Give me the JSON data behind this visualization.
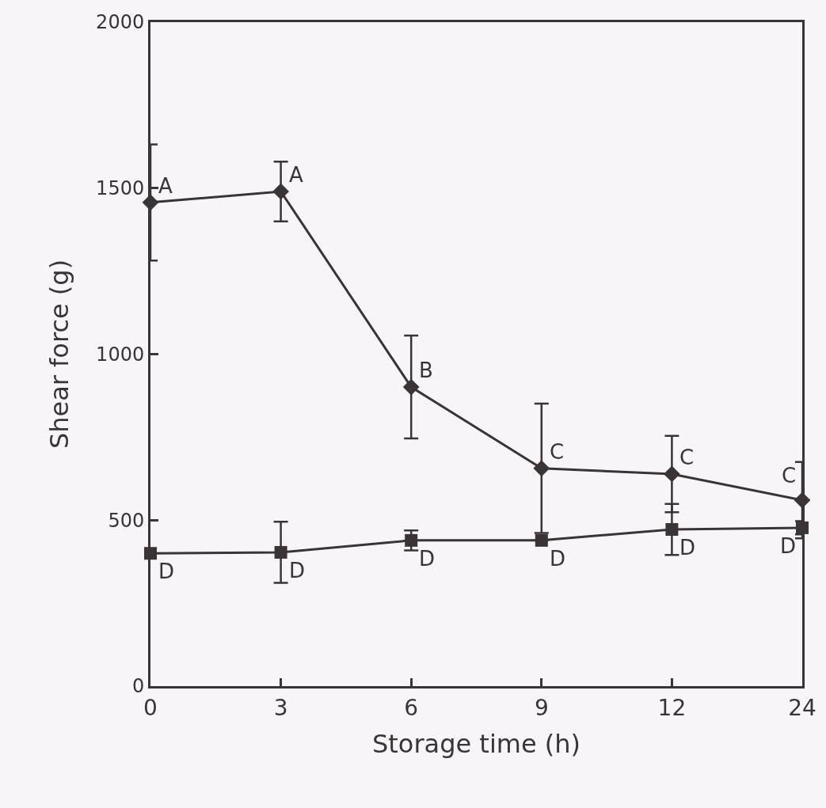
{
  "chart_data": {
    "type": "line",
    "xlabel": "Storage time (h)",
    "ylabel": "Shear force (g)",
    "categories": [
      "0",
      "3",
      "6",
      "9",
      "12",
      "24"
    ],
    "series": [
      {
        "color": "#3a3436",
        "marker": "diamond",
        "values": [
          1457,
          1490,
          901,
          656,
          639,
          560
        ],
        "errors": [
          175,
          90,
          155,
          195,
          115,
          115
        ]
      },
      {
        "color": "#3a3436",
        "marker": "square",
        "values": [
          400,
          403,
          439,
          439,
          472,
          477
        ],
        "errors": [
          null,
          92,
          30,
          null,
          77,
          20
        ]
      }
    ],
    "ylim": [
      0,
      2000
    ],
    "yticks": [
      0,
      500,
      1000,
      1500,
      2000
    ],
    "grid": false,
    "line_style": "solid",
    "annotations": [
      {
        "text": "A",
        "x": "0",
        "y": 1457
      },
      {
        "text": "A",
        "x": "3",
        "y": 1490
      },
      {
        "text": "B",
        "x": "6",
        "y": 901
      },
      {
        "text": "C",
        "x": "9",
        "y": 656
      },
      {
        "text": "C",
        "x": "12",
        "y": 639
      },
      {
        "text": "C",
        "x": "24",
        "y": 560
      },
      {
        "text": "D",
        "x": "0",
        "y": 400
      },
      {
        "text": "D",
        "x": "3",
        "y": 403
      },
      {
        "text": "D",
        "x": "6",
        "y": 439
      },
      {
        "text": "D",
        "x": "9",
        "y": 439
      },
      {
        "text": "D",
        "x": "12",
        "y": 472
      },
      {
        "text": "D",
        "x": "24",
        "y": 477
      }
    ]
  }
}
